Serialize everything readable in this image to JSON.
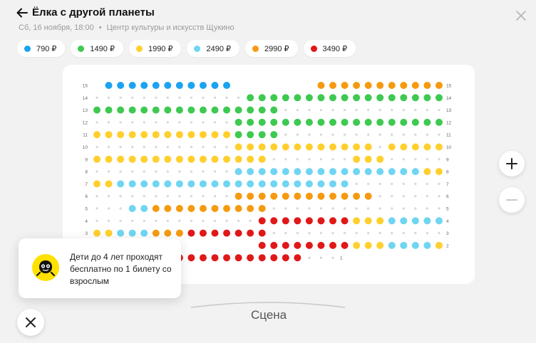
{
  "event": {
    "title": "Ёлка с другой планеты",
    "date": "Сб, 16 ноября, 18:00",
    "separator": "•",
    "venue": "Центр культуры и искусств Щукино"
  },
  "prices": [
    {
      "label": "790 ₽",
      "color": "#1aa3f0"
    },
    {
      "label": "1490 ₽",
      "color": "#3ec950"
    },
    {
      "label": "1990 ₽",
      "color": "#ffcf2e"
    },
    {
      "label": "2490 ₽",
      "color": "#6fd5f2"
    },
    {
      "label": "2990 ₽",
      "color": "#f59a10"
    },
    {
      "label": "3490 ₽",
      "color": "#e01818"
    }
  ],
  "seatmap": {
    "columns": 30,
    "rows": [
      {
        "label": "15",
        "seats": ".BBBBBBBBBBB.......OOOOOOOOOOO"
      },
      {
        "label": "14",
        "seats": "oooooooooooooGGGGGGGGGGGGGGGGG"
      },
      {
        "label": "13",
        "seats": "GGGGGGGGGGGGGGGGoooooooooooooo"
      },
      {
        "label": "12",
        "seats": "ooooooooooooGGGGGGGGGGGGGGGGGG"
      },
      {
        "label": "11",
        "seats": "YYYYYYYYYYYYGGGGoooooooooooooo"
      },
      {
        "label": "10",
        "seats": "ooooooooooooYYYYYYYYYYYYoYYYYY"
      },
      {
        "label": "9",
        "seats": "YYYYYYYYYYYYYYYoooooooYYYooooo"
      },
      {
        "label": "8",
        "seats": "ooooooooooooLLLLLLLLLLLLLLLLYY"
      },
      {
        "label": "7",
        "seats": "YYLLLLLLLLLLLLLLLLLLLLoooooooo"
      },
      {
        "label": "6",
        "seats": "ooooooooooooOOOOOOOOOOOOoooooo"
      },
      {
        "label": "5",
        "seats": "oooLLOOOOOOOOOOooooooooooooooo"
      },
      {
        "label": "4",
        "seats": "ooooooooooooooRRRRRRRRYYYLLLLL"
      },
      {
        "label": "3",
        "seats": "YYLLLOOORRRRRRRooooooooooooooo"
      },
      {
        "label": "2",
        "seats": "..............RRRRRRRRYYYLLLLY"
      },
      {
        "label": "1",
        "seats": "......RRRRRRRRRRRRooo........."
      }
    ]
  },
  "tooltip": {
    "text": "Дети до 4 лет проходят бесплатно по 1 билету со взрослым"
  },
  "scene": "Сцена",
  "icons": {
    "back": "arrow-left-icon",
    "close": "close-icon",
    "zoom_in": "plus-icon",
    "zoom_out": "minus-icon",
    "mascot": "mascot-icon"
  }
}
